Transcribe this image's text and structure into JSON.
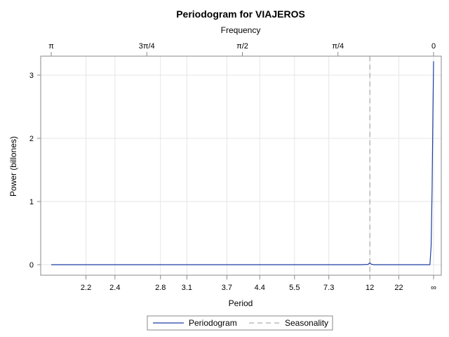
{
  "chart_data": {
    "type": "line",
    "title": "Periodogram for VIAJEROS",
    "xlabel": "Period",
    "ylabel": "Power (billones)",
    "x2label": "Frequency",
    "ylim": [
      0,
      3.2
    ],
    "yticks": [
      0,
      1,
      2,
      3
    ],
    "xlim": [
      3.14159,
      0
    ],
    "grid": true,
    "legend_position": "bottom-center",
    "period_ticks": [
      {
        "label": "2.2",
        "frequency": 2.856
      },
      {
        "label": "2.4",
        "frequency": 2.618
      },
      {
        "label": "2.8",
        "frequency": 2.244
      },
      {
        "label": "3.1",
        "frequency": 2.0268
      },
      {
        "label": "3.7",
        "frequency": 1.6982
      },
      {
        "label": "4.4",
        "frequency": 1.428
      },
      {
        "label": "5.5",
        "frequency": 1.1424
      },
      {
        "label": "7.3",
        "frequency": 0.8607
      },
      {
        "label": "12",
        "frequency": 0.5236
      },
      {
        "label": "22",
        "frequency": 0.2856
      },
      {
        "label": "∞",
        "frequency": 0
      }
    ],
    "frequency_ticks": [
      {
        "label": "π",
        "frequency": 3.14159
      },
      {
        "label": "3π/4",
        "frequency": 2.35619
      },
      {
        "label": "π/2",
        "frequency": 1.5708
      },
      {
        "label": "π/4",
        "frequency": 0.7854
      },
      {
        "label": "0",
        "frequency": 0
      }
    ],
    "series": [
      {
        "name": "Periodogram",
        "color": "#1f3f9f",
        "points": [
          [
            3.14159,
            0.0
          ],
          [
            2.5,
            0.0
          ],
          [
            1.5,
            0.0
          ],
          [
            0.8,
            0.0
          ],
          [
            0.6,
            0.0
          ],
          [
            0.54,
            0.004
          ],
          [
            0.5236,
            0.028
          ],
          [
            0.51,
            0.006
          ],
          [
            0.49,
            0.0
          ],
          [
            0.2,
            0.0
          ],
          [
            0.04,
            0.0
          ],
          [
            0.03,
            0.0
          ],
          [
            0.02,
            0.3
          ],
          [
            0.012,
            1.2
          ],
          [
            0.006,
            2.3
          ],
          [
            0.0,
            3.22
          ]
        ]
      }
    ],
    "reference_lines": [
      {
        "name": "Seasonality",
        "frequency": 0.5236,
        "color": "#999999",
        "style": "dashed"
      }
    ]
  }
}
